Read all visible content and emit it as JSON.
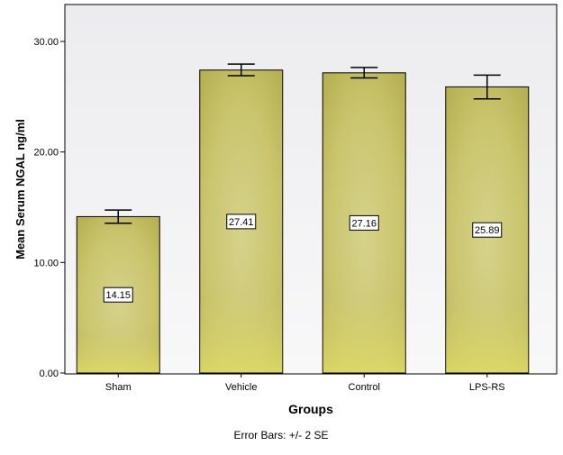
{
  "chart_data": {
    "type": "bar",
    "categories": [
      "Sham",
      "Vehicle",
      "Control",
      "LPS-RS"
    ],
    "values": [
      14.15,
      27.41,
      27.16,
      25.89
    ],
    "data_labels": [
      "14.15",
      "27.41",
      "27.16",
      "25.89"
    ],
    "error_bars": [
      {
        "low": 13.55,
        "high": 14.75
      },
      {
        "low": 26.9,
        "high": 27.95
      },
      {
        "low": 26.7,
        "high": 27.65
      },
      {
        "low": 24.8,
        "high": 26.95
      }
    ],
    "xlabel": "Groups",
    "ylabel": "Mean Serum NGAL ng/ml",
    "yticks": [
      0,
      10,
      20,
      30
    ],
    "ytick_labels": [
      "0.00",
      "10.00",
      "20.00",
      "30.00"
    ],
    "ylim": [
      0,
      33
    ],
    "grid": false,
    "legend": "none",
    "footnote": "Error Bars: +/- 2 SE",
    "colors": {
      "bar_fill": "#c8c268",
      "bar_highlight": "#d8d480",
      "bar_edge": "#000000",
      "plot_background": "#f0f0f2",
      "error_bar": "#000000"
    }
  }
}
